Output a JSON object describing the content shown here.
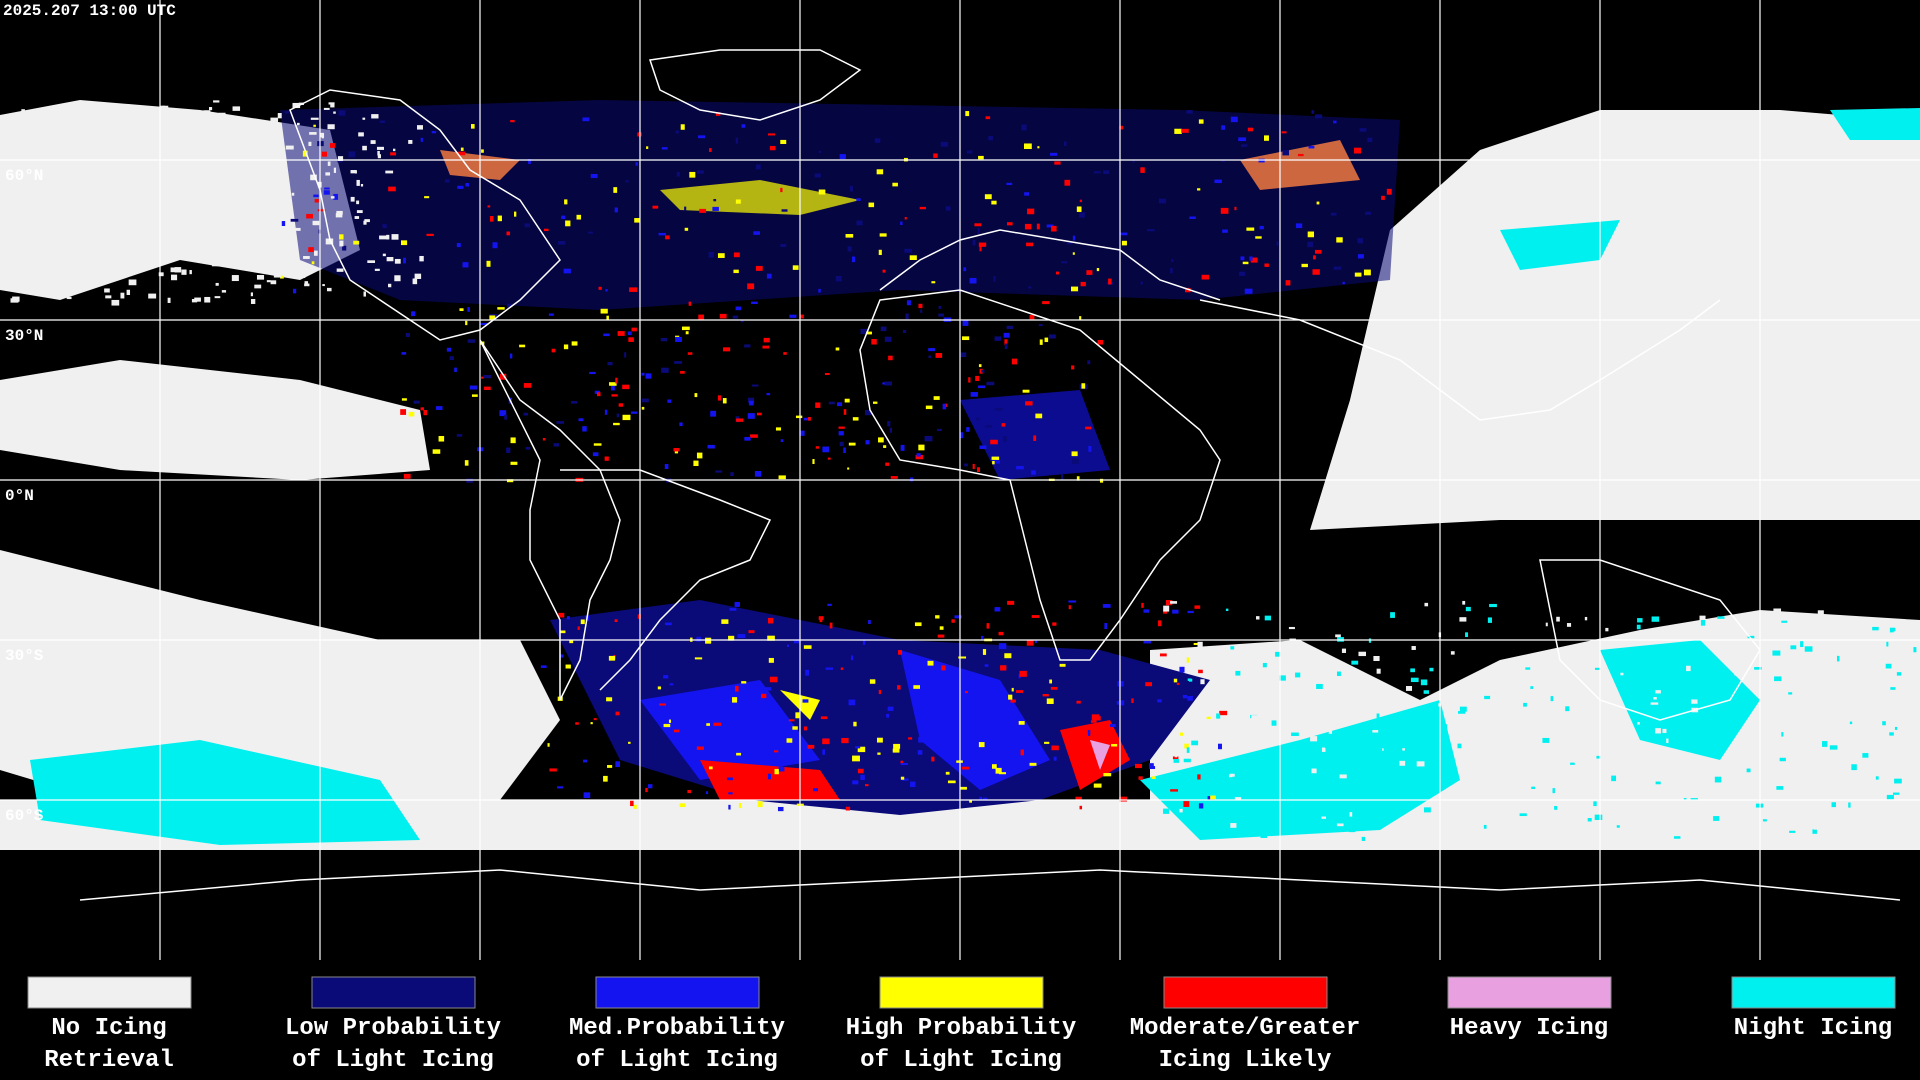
{
  "header": {
    "timestamp": "2025.207 13:00 UTC"
  },
  "map": {
    "lat_labels": [
      "60°N",
      "30°N",
      "0°N",
      "30°S",
      "60°S"
    ]
  },
  "legend": {
    "items": [
      {
        "line1": "No Icing",
        "line2": "Retrieval",
        "color": "#f0f0f0"
      },
      {
        "line1": "Low Probability",
        "line2": "of Light Icing",
        "color": "#0a0a78"
      },
      {
        "line1": "Med.Probability",
        "line2": "of Light Icing",
        "color": "#1414f0"
      },
      {
        "line1": "High Probability",
        "line2": "of Light Icing",
        "color": "#ffff00"
      },
      {
        "line1": "Moderate/Greater",
        "line2": "Icing Likely",
        "color": "#ff0000"
      },
      {
        "line1": "Heavy Icing",
        "line2": "",
        "color": "#e8a0e0"
      },
      {
        "line1": "Night Icing",
        "line2": "",
        "color": "#00f0f0"
      }
    ]
  }
}
